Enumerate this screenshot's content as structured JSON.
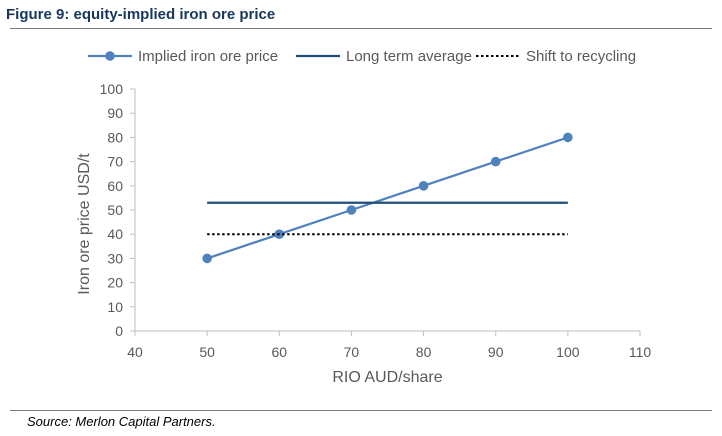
{
  "figure": {
    "title": "Figure 9: equity-implied iron ore price",
    "source": "Source: Merlon Capital Partners."
  },
  "chart_data": {
    "type": "line",
    "xlabel": "RIO AUD/share",
    "ylabel": "Iron ore price USD/t",
    "xlim": [
      40,
      110
    ],
    "ylim": [
      0,
      100
    ],
    "x_ticks": [
      "40",
      "50",
      "60",
      "70",
      "80",
      "90",
      "100",
      "110"
    ],
    "y_ticks": [
      "0",
      "10",
      "20",
      "30",
      "40",
      "50",
      "60",
      "70",
      "80",
      "90",
      "100"
    ],
    "grid": false,
    "legend_position": "top",
    "series": [
      {
        "name": "Implied iron ore price",
        "style": "line-markers",
        "color": "#4f81bd",
        "x": [
          50,
          60,
          70,
          80,
          90,
          100
        ],
        "y": [
          30,
          40,
          50,
          60,
          70,
          80
        ]
      },
      {
        "name": "Long term average",
        "style": "solid",
        "color": "#1f4e79",
        "x": [
          50,
          100
        ],
        "y": [
          53,
          53
        ]
      },
      {
        "name": "Shift to recycling",
        "style": "dotted",
        "color": "#000000",
        "x": [
          50,
          100
        ],
        "y": [
          40,
          40
        ]
      }
    ]
  }
}
